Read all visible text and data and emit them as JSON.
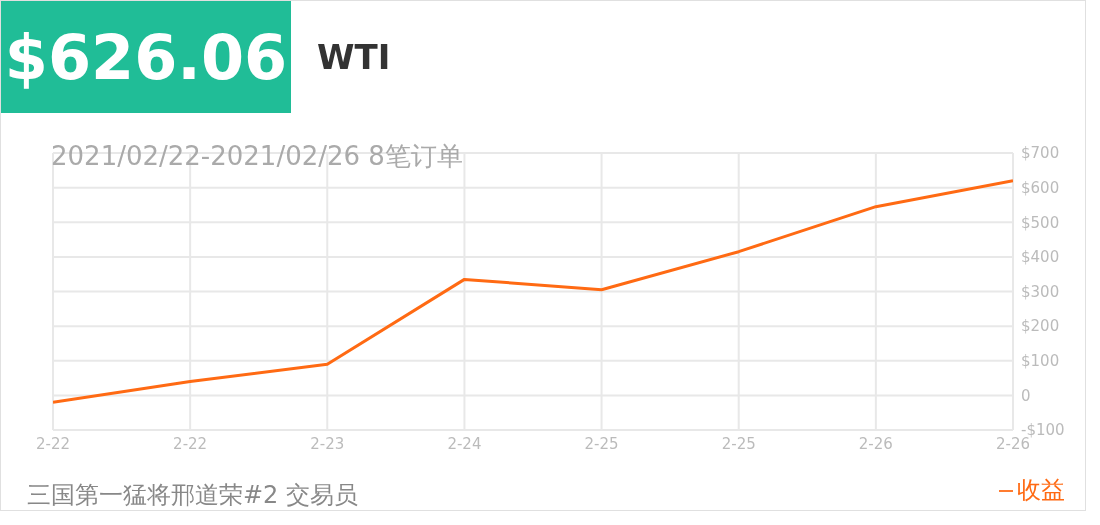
{
  "chart_data": {
    "type": "line",
    "title": "$626.06",
    "subtitle": "WTI",
    "annotations": [
      "2021/02/22-2021/02/26 8笔订单",
      "三国第一猛将邢道荣#2    交易员"
    ],
    "categories": [
      "2-22",
      "2-22",
      "2-23",
      "2-24",
      "2-25",
      "2-25",
      "2-26",
      "2-26"
    ],
    "series": [
      {
        "name": "收益",
        "color": "#ff6a13",
        "values": [
          -20,
          40,
          90,
          335,
          305,
          415,
          545,
          620
        ]
      }
    ],
    "ylim": [
      -100,
      700
    ],
    "yticks": [
      {
        "value": -100,
        "label": "-$100"
      },
      0,
      {
        "value": 100,
        "label": "$100"
      },
      {
        "value": 200,
        "label": "$200"
      },
      {
        "value": 300,
        "label": "$300"
      },
      {
        "value": 400,
        "label": "$400"
      },
      {
        "value": 500,
        "label": "$500"
      },
      {
        "value": 600,
        "label": "$600"
      },
      {
        "value": 700,
        "label": "$700"
      }
    ],
    "grid": true,
    "legend": "bottom right",
    "marker": "none",
    "line_style": "solid"
  }
}
